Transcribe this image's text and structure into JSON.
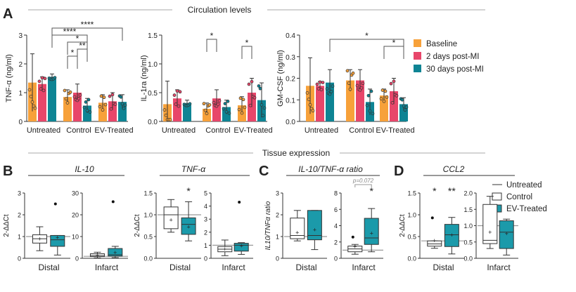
{
  "figure": {
    "section_top": "Circulation levels",
    "section_bottom": "Tissue expression",
    "panel_labels": [
      "A",
      "B",
      "C",
      "D"
    ]
  },
  "colors": {
    "baseline": "#F7A13A",
    "post2": "#E8466A",
    "post30": "#0E8494",
    "ev": "#1B9AAA",
    "control": "#ffffff",
    "untreated_line": "#999999",
    "axis": "#333333"
  },
  "chart_data": [
    {
      "id": "tnf",
      "type": "bar",
      "ylabel": "TNF-α (ng/ml)",
      "ylim": [
        0,
        3
      ],
      "yticks": [
        "0",
        "1",
        "2",
        "3"
      ],
      "categories": [
        "Untreated",
        "Control",
        "EV-Treated"
      ],
      "series": [
        {
          "name": "Baseline",
          "values": [
            1.35,
            0.85,
            0.65
          ],
          "err": [
            1.0,
            0.25,
            0.28
          ]
        },
        {
          "name": "2 days post-MI",
          "values": [
            1.3,
            1.0,
            0.7
          ],
          "err": [
            0.25,
            0.3,
            0.3
          ]
        },
        {
          "name": "30 days post-MI",
          "values": [
            1.55,
            0.55,
            0.68
          ],
          "err": [
            0.1,
            0.25,
            0.25
          ]
        }
      ],
      "significance": [
        {
          "label": "****",
          "from": [
            0,
            2
          ],
          "to": [
            2,
            2
          ]
        },
        {
          "label": "****",
          "from": [
            0,
            2
          ],
          "to": [
            1,
            2
          ]
        },
        {
          "label": "*",
          "from": [
            1,
            0
          ],
          "to": [
            1,
            2
          ]
        },
        {
          "label": "**",
          "from": [
            1,
            1
          ],
          "to": [
            1,
            2
          ]
        },
        {
          "label": "*",
          "from": [
            1,
            0
          ],
          "to": [
            1,
            1
          ]
        }
      ]
    },
    {
      "id": "il1ra",
      "type": "bar",
      "ylabel": "IL-1ra (ng/ml)",
      "ylim": [
        0,
        1.5
      ],
      "yticks": [
        "0.0",
        "0.5",
        "1.0",
        "1.5"
      ],
      "categories": [
        "Untreated",
        "Control",
        "EV-Treated"
      ],
      "series": [
        {
          "name": "Baseline",
          "values": [
            0.3,
            0.22,
            0.28
          ],
          "err": [
            0.4,
            0.1,
            0.15
          ]
        },
        {
          "name": "2 days post-MI",
          "values": [
            0.4,
            0.4,
            0.5
          ],
          "err": [
            0.15,
            0.15,
            0.25
          ]
        },
        {
          "name": "30 days post-MI",
          "values": [
            0.32,
            0.25,
            0.37
          ],
          "err": [
            0.05,
            0.12,
            0.3
          ]
        }
      ],
      "significance": [
        {
          "label": "*",
          "from": [
            1,
            0
          ],
          "to": [
            1,
            1
          ]
        },
        {
          "label": "*",
          "from": [
            2,
            0
          ],
          "to": [
            2,
            1
          ]
        }
      ]
    },
    {
      "id": "gmcsf",
      "type": "bar",
      "ylabel": "GM-CSF (ng/ml)",
      "ylim": [
        0,
        0.4
      ],
      "yticks": [
        "0.0",
        "0.1",
        "0.2",
        "0.3",
        "0.4"
      ],
      "categories": [
        "Untreated",
        "Control",
        "EV-Treated"
      ],
      "series": [
        {
          "name": "Baseline",
          "values": [
            0.165,
            0.19,
            0.12
          ],
          "err": [
            0.13,
            0.05,
            0.03
          ]
        },
        {
          "name": "2 days post-MI",
          "values": [
            0.165,
            0.19,
            0.14
          ],
          "err": [
            0.02,
            0.05,
            0.06
          ]
        },
        {
          "name": "30 days post-MI",
          "values": [
            0.18,
            0.09,
            0.08
          ],
          "err": [
            0.06,
            0.06,
            0.03
          ]
        }
      ],
      "significance": [
        {
          "label": "*",
          "from": [
            0,
            2
          ],
          "to": [
            2,
            2
          ]
        },
        {
          "label": "*",
          "from": [
            2,
            0
          ],
          "to": [
            2,
            2
          ]
        }
      ]
    },
    {
      "id": "il10",
      "type": "box",
      "title": "IL-10",
      "ylabel": "2-ΔΔCt",
      "groups": [
        {
          "label": "Distal",
          "ylim": [
            0,
            3
          ],
          "yticks": [
            "0",
            "1",
            "2",
            "3"
          ],
          "untreated": 1.0,
          "boxes": [
            {
              "name": "Control",
              "whisker": [
                0.35,
                1.45
              ],
              "q": [
                0.7,
                0.9,
                1.08
              ],
              "mean": 0.88,
              "outliers": []
            },
            {
              "name": "EV-Treated",
              "whisker": [
                0.15,
                1.05
              ],
              "q": [
                0.55,
                0.85,
                1.05
              ],
              "mean": 0.95,
              "outliers": [
                2.5
              ]
            }
          ]
        },
        {
          "label": "Infarct",
          "ylim": [
            0,
            30
          ],
          "yticks": [
            "0",
            "10",
            "20",
            "30"
          ],
          "untreated": 0.9,
          "boxes": [
            {
              "name": "Control",
              "whisker": [
                0.2,
                2.8
              ],
              "q": [
                0.8,
                1.3,
                2.1
              ],
              "mean": 1.4,
              "outliers": []
            },
            {
              "name": "EV-Treated",
              "whisker": [
                0.3,
                5.5
              ],
              "q": [
                1.0,
                1.6,
                4.5
              ],
              "mean": 2.6,
              "outliers": [
                26
              ]
            }
          ]
        }
      ]
    },
    {
      "id": "tnfa",
      "type": "box",
      "title": "TNF-α",
      "ylabel": "2-ΔΔCt",
      "groups": [
        {
          "label": "Distal",
          "ylim": [
            0,
            1.5
          ],
          "yticks": [
            "0.0",
            "0.5",
            "1.0",
            "1.5"
          ],
          "untreated": 1.0,
          "star": "*",
          "boxes": [
            {
              "name": "Control",
              "whisker": [
                0.6,
                1.35
              ],
              "q": [
                0.68,
                1.0,
                1.18
              ],
              "mean": 0.88,
              "outliers": []
            },
            {
              "name": "EV-Treated",
              "whisker": [
                0.4,
                1.3
              ],
              "q": [
                0.55,
                0.78,
                0.93
              ],
              "mean": 0.72,
              "outliers": []
            }
          ]
        },
        {
          "label": "Infarct",
          "ylim": [
            0,
            5
          ],
          "yticks": [
            "0",
            "1",
            "2",
            "3",
            "4",
            "5"
          ],
          "untreated": 1.0,
          "boxes": [
            {
              "name": "Control",
              "whisker": [
                0.2,
                1.4
              ],
              "q": [
                0.5,
                0.7,
                0.9
              ],
              "mean": 0.7,
              "outliers": []
            },
            {
              "name": "EV-Treated",
              "whisker": [
                0.3,
                1.2
              ],
              "q": [
                0.55,
                1.0,
                1.15
              ],
              "mean": 0.95,
              "outliers": [
                4.3
              ]
            }
          ]
        }
      ]
    },
    {
      "id": "ratio",
      "type": "box",
      "title": "IL-10/TNF-α ratio",
      "ylabel": "IL10/TNFα ratio",
      "groups": [
        {
          "label": "Distal",
          "ylim": [
            0,
            3
          ],
          "yticks": [
            "0",
            "1",
            "2",
            "3"
          ],
          "untreated": 1.0,
          "boxes": [
            {
              "name": "Control",
              "whisker": [
                0.8,
                2.2
              ],
              "q": [
                0.9,
                1.05,
                1.85
              ],
              "mean": 1.18,
              "outliers": []
            },
            {
              "name": "EV-Treated",
              "whisker": [
                0.4,
                2.2
              ],
              "q": [
                0.85,
                1.05,
                2.2
              ],
              "mean": 1.3,
              "outliers": []
            }
          ]
        },
        {
          "label": "Infarct",
          "ylim": [
            0,
            8
          ],
          "yticks": [
            "0",
            "2",
            "4",
            "6",
            "8"
          ],
          "untreated": 1.0,
          "star": "*",
          "pvalue": "p=0.072",
          "boxes": [
            {
              "name": "Control",
              "whisker": [
                0.5,
                1.7
              ],
              "q": [
                0.8,
                1.15,
                1.5
              ],
              "mean": 1.4,
              "outliers": [
                2.6
              ]
            },
            {
              "name": "EV-Treated",
              "whisker": [
                0.8,
                6.1
              ],
              "q": [
                1.7,
                2.5,
                4.9
              ],
              "mean": 3.05,
              "outliers": []
            }
          ]
        }
      ]
    },
    {
      "id": "ccl2",
      "type": "box",
      "title": "CCL2",
      "ylabel": "2-ΔΔCt",
      "groups": [
        {
          "label": "Distal",
          "ylim": [
            0,
            1.5
          ],
          "yticks": [
            "0.0",
            "0.5",
            "1.0",
            "1.5"
          ],
          "untreated": 0.4,
          "stars": [
            "*",
            "**"
          ],
          "boxes": [
            {
              "name": "Control",
              "whisker": [
                0.23,
                0.4
              ],
              "q": [
                0.28,
                0.33,
                0.4
              ],
              "mean": 0.4,
              "outliers": [
                0.93
              ]
            },
            {
              "name": "EV-Treated",
              "whisker": [
                0.1,
                0.94
              ],
              "q": [
                0.27,
                0.54,
                0.78
              ],
              "mean": 0.53,
              "outliers": []
            }
          ]
        },
        {
          "label": "Infarct",
          "ylim": [
            0,
            2
          ],
          "yticks": [
            "0.0",
            "0.5",
            "1.0",
            "1.5",
            "2.0"
          ],
          "untreated": 1.0,
          "boxes": [
            {
              "name": "Control",
              "whisker": [
                0.3,
                1.9
              ],
              "q": [
                0.45,
                0.55,
                1.65
              ],
              "mean": 0.8,
              "outliers": []
            },
            {
              "name": "EV-Treated",
              "whisker": [
                0.1,
                1.2
              ],
              "q": [
                0.3,
                0.8,
                1.15
              ],
              "mean": 0.75,
              "outliers": []
            }
          ]
        }
      ]
    }
  ],
  "legend_top": [
    "Baseline",
    "2 days post-MI",
    "30 days post-MI"
  ],
  "legend_bottom": [
    "Untreated",
    "Control",
    "EV-Treated"
  ]
}
